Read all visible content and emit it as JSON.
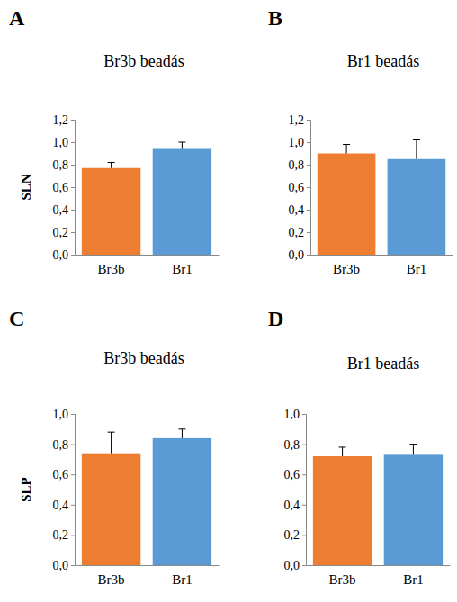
{
  "chart_data": [
    {
      "type": "bar",
      "annotation": "A",
      "title": "Br3b beadás",
      "y_label": "SLN",
      "categories": [
        "Br3b",
        "Br1"
      ],
      "values": [
        0.77,
        0.94
      ],
      "errors": [
        0.05,
        0.06
      ],
      "colors": [
        "#ed7d31",
        "#5b9bd5"
      ],
      "ylim": [
        0,
        1.2
      ],
      "yticks": [
        {
          "value": 0,
          "label": "0,0"
        },
        {
          "value": 0.2,
          "label": "0,2"
        },
        {
          "value": 0.4,
          "label": "0,4"
        },
        {
          "value": 0.6,
          "label": "0,6"
        },
        {
          "value": 0.8,
          "label": "0,8"
        },
        {
          "value": 1.0,
          "label": "1,0"
        },
        {
          "value": 1.2,
          "label": "1,2"
        }
      ],
      "grid": false
    },
    {
      "type": "bar",
      "annotation": "B",
      "title": "Br1 beadás",
      "categories": [
        "Br3b",
        "Br1"
      ],
      "values": [
        0.9,
        0.85
      ],
      "errors": [
        0.08,
        0.17
      ],
      "colors": [
        "#ed7d31",
        "#5b9bd5"
      ],
      "ylim": [
        0,
        1.2
      ],
      "yticks": [
        {
          "value": 0,
          "label": "0,0"
        },
        {
          "value": 0.2,
          "label": "0,2"
        },
        {
          "value": 0.4,
          "label": "0,4"
        },
        {
          "value": 0.6,
          "label": "0,6"
        },
        {
          "value": 0.8,
          "label": "0,8"
        },
        {
          "value": 1.0,
          "label": "1,0"
        },
        {
          "value": 1.2,
          "label": "1,2"
        }
      ],
      "grid": false
    },
    {
      "type": "bar",
      "annotation": "C",
      "title": "Br3b beadás",
      "y_label": "SLP",
      "categories": [
        "Br3b",
        "Br1"
      ],
      "values": [
        0.74,
        0.84
      ],
      "errors": [
        0.14,
        0.06
      ],
      "colors": [
        "#ed7d31",
        "#5b9bd5"
      ],
      "ylim": [
        0,
        1.0
      ],
      "yticks": [
        {
          "value": 0,
          "label": "0,0"
        },
        {
          "value": 0.2,
          "label": "0,2"
        },
        {
          "value": 0.4,
          "label": "0,4"
        },
        {
          "value": 0.6,
          "label": "0,6"
        },
        {
          "value": 0.8,
          "label": "0,8"
        },
        {
          "value": 1.0,
          "label": "1,0"
        }
      ],
      "grid": false
    },
    {
      "type": "bar",
      "annotation": "D",
      "title": "Br1 beadás",
      "categories": [
        "Br3b",
        "Br1"
      ],
      "values": [
        0.72,
        0.73
      ],
      "errors": [
        0.06,
        0.07
      ],
      "colors": [
        "#ed7d31",
        "#5b9bd5"
      ],
      "ylim": [
        0,
        1.0
      ],
      "yticks": [
        {
          "value": 0,
          "label": "0,0"
        },
        {
          "value": 0.2,
          "label": "0,2"
        },
        {
          "value": 0.4,
          "label": "0,4"
        },
        {
          "value": 0.6,
          "label": "0,6"
        },
        {
          "value": 0.8,
          "label": "0,8"
        },
        {
          "value": 1.0,
          "label": "1,0"
        }
      ],
      "grid": false
    }
  ]
}
